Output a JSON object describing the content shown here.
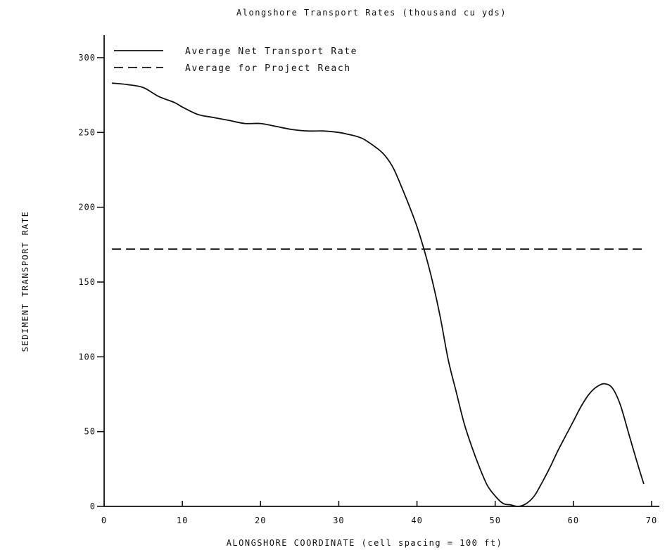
{
  "chart_data": {
    "type": "line",
    "title": "Alongshore Transport Rates (thousand cu yds)",
    "xlabel": "ALONGSHORE COORDINATE (cell spacing = 100 ft)",
    "ylabel": "SEDIMENT TRANSPORT RATE",
    "xlim": [
      0,
      70
    ],
    "ylim": [
      0,
      300
    ],
    "xticks": [
      0,
      10,
      20,
      30,
      40,
      50,
      60,
      70
    ],
    "yticks": [
      0,
      50,
      100,
      150,
      200,
      250,
      300
    ],
    "xtick_labels": [
      "0",
      "10",
      "20",
      "30",
      "40",
      "50",
      "60",
      "70"
    ],
    "ytick_labels": [
      "0",
      "50",
      "100",
      "150",
      "200",
      "250",
      "300"
    ],
    "grid": false,
    "legend_position": "top-left",
    "series": [
      {
        "name": "Average Net Transport Rate",
        "style": "solid",
        "x": [
          1,
          3,
          5,
          7,
          9,
          10,
          12,
          14,
          16,
          18,
          20,
          22,
          24,
          26,
          28,
          30,
          31,
          33,
          35,
          36,
          37,
          38,
          39,
          40,
          41,
          42,
          43,
          44,
          45,
          46,
          47,
          48,
          49,
          50,
          51,
          52,
          53,
          54,
          55,
          56,
          57,
          58,
          59,
          60,
          61,
          62,
          63,
          64,
          65,
          66,
          67,
          68,
          69
        ],
        "y": [
          283,
          282,
          280,
          274,
          270,
          267,
          262,
          260,
          258,
          256,
          256,
          254,
          252,
          251,
          251,
          250,
          249,
          246,
          239,
          234,
          226,
          214,
          201,
          187,
          170,
          150,
          126,
          98,
          77,
          56,
          40,
          26,
          14,
          7,
          2,
          1,
          0,
          2,
          7,
          16,
          26,
          37,
          47,
          57,
          67,
          75,
          80,
          82,
          79,
          68,
          50,
          32,
          15
        ]
      },
      {
        "name": "Average for Project Reach",
        "style": "dashed",
        "x": [
          1,
          69
        ],
        "y": [
          172,
          172
        ]
      }
    ]
  }
}
